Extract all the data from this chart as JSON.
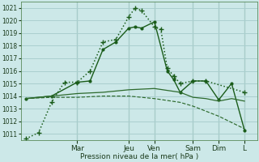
{
  "xlabel": "Pression niveau de la mer( hPa )",
  "bg_color": "#cce8e8",
  "grid_color": "#aacfcf",
  "ylim": [
    1010.5,
    1021.5
  ],
  "yticks": [
    1011,
    1012,
    1013,
    1014,
    1015,
    1016,
    1017,
    1018,
    1019,
    1020,
    1021
  ],
  "day_labels": [
    "Mar",
    "Jeu",
    "Ven",
    "Sam",
    "Dim",
    "L"
  ],
  "day_positions": [
    2.0,
    4.0,
    5.0,
    6.5,
    7.5,
    8.5
  ],
  "xlim": [
    -0.2,
    9.0
  ],
  "series": [
    {
      "x": [
        0.0,
        0.5,
        1.0,
        1.5,
        2.0,
        2.5,
        3.0,
        3.5,
        4.0,
        4.25,
        4.5,
        5.0,
        5.25,
        5.5,
        5.75,
        6.0,
        6.5,
        7.0,
        8.5
      ],
      "y": [
        1010.6,
        1011.1,
        1013.5,
        1015.1,
        1015.1,
        1016.0,
        1018.3,
        1018.5,
        1020.3,
        1021.0,
        1020.8,
        1019.5,
        1019.3,
        1016.2,
        1015.6,
        1015.0,
        1015.2,
        1015.2,
        1014.3
      ],
      "style": ":",
      "marker": "+",
      "color": "#1a5c1a",
      "linewidth": 1.1,
      "markersize": 4
    },
    {
      "x": [
        0.0,
        1.0,
        2.0,
        2.5,
        3.0,
        3.5,
        4.0,
        4.25,
        4.5,
        5.0,
        5.5,
        5.75,
        6.0,
        6.5,
        7.0,
        7.5,
        8.0,
        8.5
      ],
      "y": [
        1013.8,
        1014.0,
        1015.1,
        1015.2,
        1017.7,
        1018.3,
        1019.4,
        1019.5,
        1019.4,
        1019.9,
        1016.0,
        1015.3,
        1014.3,
        1015.2,
        1015.2,
        1013.7,
        1015.0,
        1011.3
      ],
      "style": "-",
      "marker": ".",
      "color": "#1a5c1a",
      "linewidth": 1.0,
      "markersize": 4
    },
    {
      "x": [
        0.0,
        1.0,
        2.0,
        3.0,
        4.0,
        5.0,
        6.0,
        6.5,
        7.0,
        7.5,
        8.0,
        8.5
      ],
      "y": [
        1013.8,
        1014.0,
        1014.2,
        1014.3,
        1014.5,
        1014.6,
        1014.3,
        1013.9,
        1013.8,
        1013.6,
        1013.8,
        1013.6
      ],
      "style": "-",
      "marker": "",
      "color": "#2d6a2d",
      "linewidth": 0.9,
      "markersize": 0
    },
    {
      "x": [
        0.0,
        1.0,
        2.0,
        3.0,
        4.0,
        5.0,
        6.0,
        6.5,
        7.0,
        7.5,
        8.0,
        8.5
      ],
      "y": [
        1013.8,
        1013.9,
        1013.9,
        1014.0,
        1014.0,
        1013.8,
        1013.5,
        1013.2,
        1012.8,
        1012.4,
        1011.9,
        1011.4
      ],
      "style": "--",
      "marker": "",
      "color": "#2d6a2d",
      "linewidth": 0.85,
      "markersize": 0
    }
  ]
}
